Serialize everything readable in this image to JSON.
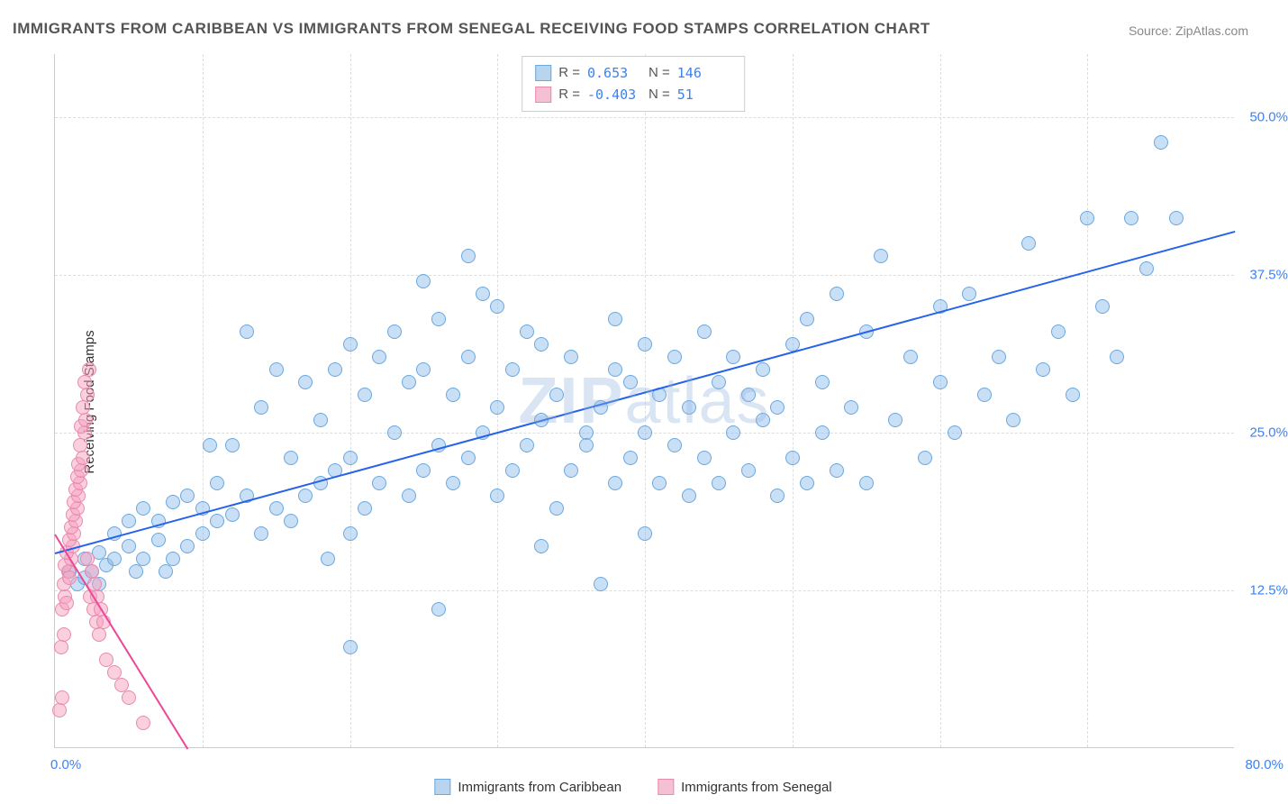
{
  "title": "IMMIGRANTS FROM CARIBBEAN VS IMMIGRANTS FROM SENEGAL RECEIVING FOOD STAMPS CORRELATION CHART",
  "source": "Source: ZipAtlas.com",
  "ylabel": "Receiving Food Stamps",
  "watermark_bold": "ZIP",
  "watermark_rest": "atlas",
  "chart": {
    "type": "scatter",
    "xlim": [
      0,
      80
    ],
    "ylim": [
      0,
      55
    ],
    "yticks": [
      12.5,
      25.0,
      37.5,
      50.0
    ],
    "ytick_labels": [
      "12.5%",
      "25.0%",
      "37.5%",
      "50.0%"
    ],
    "xtick_left": "0.0%",
    "xtick_right": "80.0%",
    "vgrid_step": 10,
    "background_color": "#ffffff",
    "grid_color": "#dddddd",
    "axis_color": "#cccccc",
    "tick_label_color": "#3b82f6",
    "label_fontsize": 15,
    "title_fontsize": 17,
    "marker_radius": 8,
    "series": [
      {
        "name": "Immigrants from Caribbean",
        "color_fill": "rgba(135, 185, 235, 0.45)",
        "color_stroke": "#6aa8dd",
        "swatch_fill": "#b8d4ef",
        "swatch_stroke": "#6aa8dd",
        "trend_color": "#2563eb",
        "R": "0.653",
        "N": "146",
        "trend": {
          "x0": 0,
          "y0": 15.5,
          "x1": 80,
          "y1": 41
        },
        "points": [
          [
            1,
            14
          ],
          [
            1.5,
            13
          ],
          [
            2,
            13.5
          ],
          [
            2,
            15
          ],
          [
            2.5,
            14
          ],
          [
            3,
            13
          ],
          [
            3,
            15.5
          ],
          [
            3.5,
            14.5
          ],
          [
            4,
            15
          ],
          [
            4,
            17
          ],
          [
            5,
            16
          ],
          [
            5,
            18
          ],
          [
            5.5,
            14
          ],
          [
            6,
            15
          ],
          [
            6,
            19
          ],
          [
            7,
            16.5
          ],
          [
            7,
            18
          ],
          [
            7.5,
            14
          ],
          [
            8,
            15
          ],
          [
            8,
            19.5
          ],
          [
            9,
            16
          ],
          [
            9,
            20
          ],
          [
            10,
            17
          ],
          [
            10,
            19
          ],
          [
            10.5,
            24
          ],
          [
            11,
            18
          ],
          [
            11,
            21
          ],
          [
            12,
            18.5
          ],
          [
            12,
            24
          ],
          [
            13,
            20
          ],
          [
            13,
            33
          ],
          [
            14,
            17
          ],
          [
            14,
            27
          ],
          [
            15,
            19
          ],
          [
            15,
            30
          ],
          [
            16,
            18
          ],
          [
            16,
            23
          ],
          [
            17,
            20
          ],
          [
            17,
            29
          ],
          [
            18,
            21
          ],
          [
            18,
            26
          ],
          [
            18.5,
            15
          ],
          [
            19,
            22
          ],
          [
            19,
            30
          ],
          [
            20,
            8
          ],
          [
            20,
            17
          ],
          [
            20,
            23
          ],
          [
            20,
            32
          ],
          [
            21,
            19
          ],
          [
            21,
            28
          ],
          [
            22,
            21
          ],
          [
            22,
            31
          ],
          [
            23,
            25
          ],
          [
            23,
            33
          ],
          [
            24,
            20
          ],
          [
            24,
            29
          ],
          [
            25,
            22
          ],
          [
            25,
            30
          ],
          [
            25,
            37
          ],
          [
            26,
            11
          ],
          [
            26,
            24
          ],
          [
            26,
            34
          ],
          [
            27,
            21
          ],
          [
            27,
            28
          ],
          [
            28,
            23
          ],
          [
            28,
            31
          ],
          [
            28,
            39
          ],
          [
            29,
            25
          ],
          [
            29,
            36
          ],
          [
            30,
            20
          ],
          [
            30,
            27
          ],
          [
            30,
            35
          ],
          [
            31,
            22
          ],
          [
            31,
            30
          ],
          [
            32,
            24
          ],
          [
            32,
            33
          ],
          [
            33,
            16
          ],
          [
            33,
            26
          ],
          [
            33,
            32
          ],
          [
            34,
            19
          ],
          [
            34,
            28
          ],
          [
            35,
            22
          ],
          [
            35,
            31
          ],
          [
            36,
            25
          ],
          [
            36,
            24
          ],
          [
            37,
            13
          ],
          [
            37,
            27
          ],
          [
            38,
            21
          ],
          [
            38,
            30
          ],
          [
            38,
            34
          ],
          [
            39,
            23
          ],
          [
            39,
            29
          ],
          [
            40,
            17
          ],
          [
            40,
            25
          ],
          [
            40,
            32
          ],
          [
            41,
            21
          ],
          [
            41,
            28
          ],
          [
            42,
            24
          ],
          [
            42,
            31
          ],
          [
            43,
            20
          ],
          [
            43,
            27
          ],
          [
            44,
            23
          ],
          [
            44,
            33
          ],
          [
            45,
            21
          ],
          [
            45,
            29
          ],
          [
            46,
            25
          ],
          [
            46,
            31
          ],
          [
            47,
            22
          ],
          [
            47,
            28
          ],
          [
            48,
            26
          ],
          [
            48,
            30
          ],
          [
            49,
            20
          ],
          [
            49,
            27
          ],
          [
            50,
            23
          ],
          [
            50,
            32
          ],
          [
            51,
            21
          ],
          [
            51,
            34
          ],
          [
            52,
            25
          ],
          [
            52,
            29
          ],
          [
            53,
            22
          ],
          [
            53,
            36
          ],
          [
            54,
            27
          ],
          [
            55,
            21
          ],
          [
            55,
            33
          ],
          [
            56,
            39
          ],
          [
            57,
            26
          ],
          [
            58,
            31
          ],
          [
            59,
            23
          ],
          [
            60,
            29
          ],
          [
            60,
            35
          ],
          [
            61,
            25
          ],
          [
            62,
            36
          ],
          [
            63,
            28
          ],
          [
            64,
            31
          ],
          [
            65,
            26
          ],
          [
            66,
            40
          ],
          [
            67,
            30
          ],
          [
            68,
            33
          ],
          [
            69,
            28
          ],
          [
            70,
            42
          ],
          [
            71,
            35
          ],
          [
            72,
            31
          ],
          [
            73,
            42
          ],
          [
            74,
            38
          ],
          [
            75,
            48
          ],
          [
            76,
            42
          ]
        ]
      },
      {
        "name": "Immigrants from Senegal",
        "color_fill": "rgba(245, 160, 190, 0.5)",
        "color_stroke": "#e88aad",
        "swatch_fill": "#f5c0d3",
        "swatch_stroke": "#e88aad",
        "trend_color": "#ec4899",
        "R": "-0.403",
        "N": "51",
        "trend": {
          "x0": 0,
          "y0": 17,
          "x1": 9,
          "y1": 0
        },
        "points": [
          [
            0.3,
            3
          ],
          [
            0.5,
            4
          ],
          [
            0.4,
            8
          ],
          [
            0.6,
            9
          ],
          [
            0.5,
            11
          ],
          [
            0.7,
            12
          ],
          [
            0.8,
            11.5
          ],
          [
            0.6,
            13
          ],
          [
            0.9,
            14
          ],
          [
            0.7,
            14.5
          ],
          [
            1,
            13.5
          ],
          [
            1.1,
            15
          ],
          [
            0.8,
            15.5
          ],
          [
            1.2,
            16
          ],
          [
            1,
            16.5
          ],
          [
            1.3,
            17
          ],
          [
            1.1,
            17.5
          ],
          [
            1.4,
            18
          ],
          [
            1.2,
            18.5
          ],
          [
            1.5,
            19
          ],
          [
            1.3,
            19.5
          ],
          [
            1.6,
            20
          ],
          [
            1.4,
            20.5
          ],
          [
            1.7,
            21
          ],
          [
            1.5,
            21.5
          ],
          [
            1.8,
            22
          ],
          [
            1.6,
            22.5
          ],
          [
            1.9,
            23
          ],
          [
            1.7,
            24
          ],
          [
            2,
            25
          ],
          [
            1.8,
            25.5
          ],
          [
            2.1,
            26
          ],
          [
            1.9,
            27
          ],
          [
            2.2,
            28
          ],
          [
            2,
            29
          ],
          [
            2.3,
            30
          ],
          [
            2.2,
            15
          ],
          [
            2.5,
            14
          ],
          [
            2.4,
            12
          ],
          [
            2.7,
            13
          ],
          [
            2.6,
            11
          ],
          [
            2.9,
            12
          ],
          [
            2.8,
            10
          ],
          [
            3.1,
            11
          ],
          [
            3,
            9
          ],
          [
            3.3,
            10
          ],
          [
            3.5,
            7
          ],
          [
            4,
            6
          ],
          [
            4.5,
            5
          ],
          [
            5,
            4
          ],
          [
            6,
            2
          ]
        ]
      }
    ]
  }
}
